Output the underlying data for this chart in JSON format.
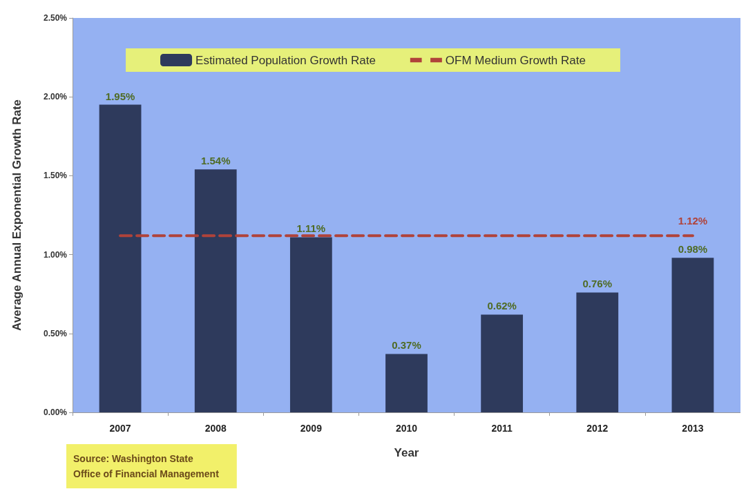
{
  "chart_data": {
    "type": "bar",
    "xlabel": "Year",
    "ylabel": "Average Annual Exponential Growth Rate",
    "categories": [
      "2007",
      "2008",
      "2009",
      "2010",
      "2011",
      "2012",
      "2013"
    ],
    "series": [
      {
        "name": "Estimated Population Growth Rate",
        "color": "#2e3a5c",
        "values": [
          1.95,
          1.54,
          1.11,
          0.37,
          0.62,
          0.76,
          0.98
        ],
        "value_labels": [
          "1.95%",
          "1.54%",
          "1.11%",
          "0.37%",
          "0.62%",
          "0.76%",
          "0.98%"
        ]
      },
      {
        "name": "OFM Medium Growth Rate",
        "type": "line",
        "color": "#b0433a",
        "line_style": "dashed",
        "marker": "none",
        "values": [
          1.12,
          1.12,
          1.12,
          1.12,
          1.12,
          1.12,
          1.12
        ],
        "value_labels": [
          null,
          null,
          null,
          null,
          null,
          null,
          "1.12%"
        ]
      }
    ],
    "ylim": [
      0,
      2.5
    ],
    "yticks": [
      {
        "value": 0,
        "label": "0.00%"
      },
      {
        "value": 0.5,
        "label": "0.50%"
      },
      {
        "value": 1,
        "label": "1.00%"
      },
      {
        "value": 1.5,
        "label": "1.50%"
      },
      {
        "value": 2,
        "label": "2.00%"
      },
      {
        "value": 2.5,
        "label": "2.50%"
      }
    ],
    "grid": false,
    "legend": "top",
    "annotations": [
      "Source: Washington State\nOffice of Financial Management"
    ]
  }
}
